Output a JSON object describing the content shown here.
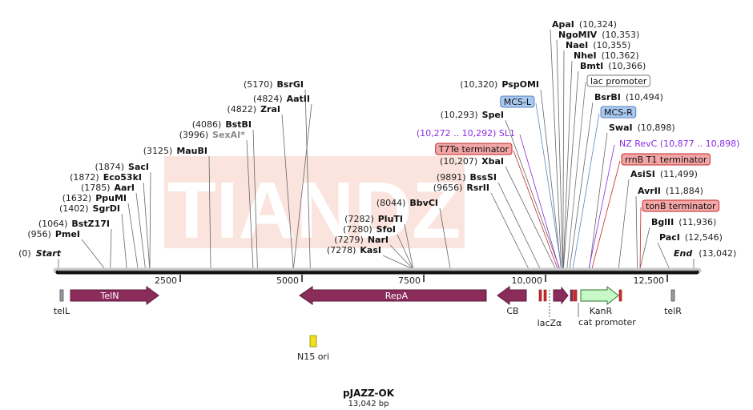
{
  "map": {
    "title": "pJAZZ-OK",
    "size_label": "13,042 bp",
    "total_bp": 13042,
    "watermark": "TIANDZ",
    "backbone_color": "#111111"
  },
  "ticks": [
    {
      "bp": 2500,
      "label": "2500"
    },
    {
      "bp": 5000,
      "label": "5000"
    },
    {
      "bp": 7500,
      "label": "7500"
    },
    {
      "bp": 10000,
      "label": "10,000"
    },
    {
      "bp": 12500,
      "label": "12,500"
    }
  ],
  "ends": [
    {
      "name": "Start",
      "pos": "(0)",
      "bp": 0,
      "side": "start"
    },
    {
      "name": "End",
      "pos": "(13,042)",
      "bp": 13042,
      "side": "end"
    }
  ],
  "sites_left": [
    {
      "name": "PmeI",
      "pos": "(956)",
      "bp": 956
    },
    {
      "name": "BstZ17I",
      "pos": "(1064)",
      "bp": 1064
    },
    {
      "name": "SgrDI",
      "pos": "(1402)",
      "bp": 1402
    },
    {
      "name": "PpuMI",
      "pos": "(1632)",
      "bp": 1632
    },
    {
      "name": "AarI",
      "pos": "(1785)",
      "bp": 1785
    },
    {
      "name": "Eco53kI",
      "pos": "(1872)",
      "bp": 1872
    },
    {
      "name": "SacI",
      "pos": "(1874)",
      "bp": 1874
    },
    {
      "name": "MauBI",
      "pos": "(3125)",
      "bp": 3125
    },
    {
      "name": "SexAI*",
      "pos": "(3996)",
      "bp": 3996,
      "gray": true
    },
    {
      "name": "BstBI",
      "pos": "(4086)",
      "bp": 4086
    },
    {
      "name": "ZraI",
      "pos": "(4822)",
      "bp": 4822
    },
    {
      "name": "AatII",
      "pos": "(4824)",
      "bp": 4824
    },
    {
      "name": "BsrGI",
      "pos": "(5170)",
      "bp": 5170
    },
    {
      "name": "KasI",
      "pos": "(7278)",
      "bp": 7278
    },
    {
      "name": "NarI",
      "pos": "(7279)",
      "bp": 7279
    },
    {
      "name": "SfoI",
      "pos": "(7280)",
      "bp": 7280
    },
    {
      "name": "PluTI",
      "pos": "(7282)",
      "bp": 7282
    },
    {
      "name": "BbvCI",
      "pos": "(8044)",
      "bp": 8044
    },
    {
      "name": "RsrII",
      "pos": "(9656)",
      "bp": 9656
    },
    {
      "name": "BssSI",
      "pos": "(9891)",
      "bp": 9891
    },
    {
      "name": "XbaI",
      "pos": "(10,207)",
      "bp": 10207
    },
    {
      "name": "SpeI",
      "pos": "(10,293)",
      "bp": 10293
    },
    {
      "name": "PspOMI",
      "pos": "(10,320)",
      "bp": 10320
    }
  ],
  "sites_right": [
    {
      "name": "ApaI",
      "pos": "(10,324)",
      "bp": 10324
    },
    {
      "name": "NgoMIV",
      "pos": "(10,353)",
      "bp": 10353
    },
    {
      "name": "NaeI",
      "pos": "(10,355)",
      "bp": 10355
    },
    {
      "name": "NheI",
      "pos": "(10,362)",
      "bp": 10362
    },
    {
      "name": "BmtI",
      "pos": "(10,366)",
      "bp": 10366
    },
    {
      "name": "BsrBI",
      "pos": "(10,494)",
      "bp": 10494
    },
    {
      "name": "SwaI",
      "pos": "(10,898)",
      "bp": 10898
    },
    {
      "name": "AsiSI",
      "pos": "(11,499)",
      "bp": 11499
    },
    {
      "name": "AvrII",
      "pos": "(11,884)",
      "bp": 11884
    },
    {
      "name": "BglII",
      "pos": "(11,936)",
      "bp": 11936
    },
    {
      "name": "PacI",
      "pos": "(12,546)",
      "bp": 12546
    }
  ],
  "feature_labels_left": [
    {
      "text": "MCS-L",
      "style": "blue",
      "bp": 10330
    },
    {
      "text": "(10,272 .. 10,292)  SL1",
      "style": "purple",
      "bp": 10282
    },
    {
      "text": "T7Te terminator",
      "style": "red",
      "bp": 10250
    }
  ],
  "feature_labels_right": [
    {
      "text": "lac promoter",
      "style": "white",
      "bp": 10440
    },
    {
      "text": "MCS-R",
      "style": "blue",
      "bp": 10560
    },
    {
      "text": "NZ RevC  (10,877 .. 10,898)",
      "style": "purple",
      "bp": 10888
    },
    {
      "text": "rrnB T1 terminator",
      "style": "red",
      "bp": 10950
    },
    {
      "text": "tonB terminator",
      "style": "red",
      "bp": 11940
    }
  ],
  "features": [
    {
      "name": "telL",
      "label": "telL"
    },
    {
      "name": "TelN",
      "label": "TelN"
    },
    {
      "name": "RepA",
      "label": "RepA"
    },
    {
      "name": "CB",
      "label": "CB"
    },
    {
      "name": "lacZα",
      "label": "lacZα"
    },
    {
      "name": "KanR",
      "label": "KanR"
    },
    {
      "name": "cat promoter",
      "label": "cat promoter"
    },
    {
      "name": "telR",
      "label": "telR"
    },
    {
      "name": "N15 ori",
      "label": "N15 ori"
    }
  ],
  "colors": {
    "gene_fill": "#8b2c5a",
    "gene_stroke": "#5a1a3a",
    "kanr_fill": "#c8f7c8",
    "kanr_stroke": "#2f7a2f",
    "term_fill": "#f2a6a6",
    "term_stroke": "#c22a2a",
    "term_bar": "#d22a2a",
    "blue_fill": "#a9c8f0",
    "blue_stroke": "#5b85c0",
    "purple": "#8a2be2",
    "ori_fill": "#f0e020",
    "gray_feature": "#9a9aa6"
  }
}
